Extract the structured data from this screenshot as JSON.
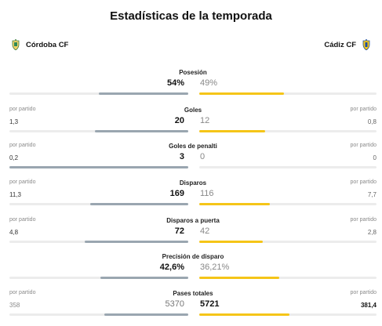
{
  "title": "Estadísticas de la temporada",
  "home_team": {
    "name": "Córdoba CF",
    "crest_icon": "cordoba-crest-icon",
    "color": "#9aa6b0"
  },
  "away_team": {
    "name": "Cádiz CF",
    "crest_icon": "cadiz-crest-icon",
    "color": "#f5c518"
  },
  "stats": [
    {
      "label": "Posesión",
      "per_match_label": "",
      "home_avg": "",
      "away_avg": "",
      "home_value": "54%",
      "away_value": "49%",
      "home_share": 0.5,
      "away_share": 0.48,
      "leader": "home"
    },
    {
      "label": "Goles",
      "per_match_label": "por partido",
      "home_avg": "1,3",
      "away_avg": "0,8",
      "home_value": "20",
      "away_value": "12",
      "home_share": 0.52,
      "away_share": 0.37,
      "leader": "home"
    },
    {
      "label": "Goles de penalti",
      "per_match_label": "por partido",
      "home_avg": "0,2",
      "away_avg": "0",
      "home_value": "3",
      "away_value": "0",
      "home_share": 1.0,
      "away_share": 0.0,
      "leader": "home"
    },
    {
      "label": "Disparos",
      "per_match_label": "por partido",
      "home_avg": "11,3",
      "away_avg": "7,7",
      "home_value": "169",
      "away_value": "116",
      "home_share": 0.55,
      "away_share": 0.4,
      "leader": "home"
    },
    {
      "label": "Disparos a puerta",
      "per_match_label": "por partido",
      "home_avg": "4,8",
      "away_avg": "2,8",
      "home_value": "72",
      "away_value": "42",
      "home_share": 0.58,
      "away_share": 0.36,
      "leader": "home"
    },
    {
      "label": "Precisión de disparo",
      "per_match_label": "",
      "home_avg": "",
      "away_avg": "",
      "home_value": "42,6%",
      "away_value": "36,21%",
      "home_share": 0.49,
      "away_share": 0.45,
      "leader": "home"
    },
    {
      "label": "Pases totales",
      "per_match_label": "por partido",
      "home_avg": "358",
      "away_avg": "381,4",
      "home_value": "5370",
      "away_value": "5721",
      "home_share": 0.47,
      "away_share": 0.51,
      "leader": "away"
    }
  ]
}
